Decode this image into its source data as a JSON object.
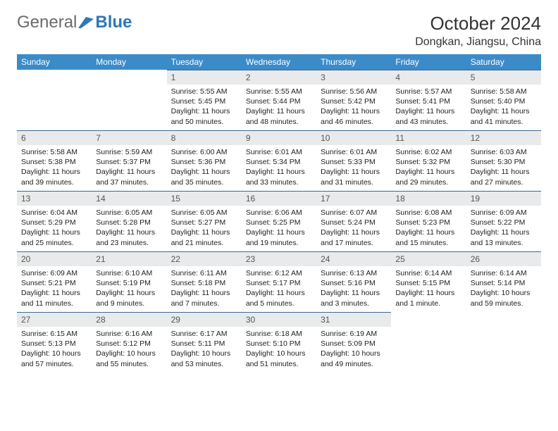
{
  "brand": {
    "text1": "General",
    "text2": "Blue"
  },
  "title": "October 2024",
  "location": "Dongkan, Jiangsu, China",
  "colors": {
    "header_bg": "#3b8bc9",
    "header_text": "#ffffff",
    "daynum_bg": "#e9eaeb",
    "daynum_border": "#3b6a93",
    "logo_gray": "#6b6b6b",
    "logo_blue": "#2e77b8",
    "page_bg": "#ffffff"
  },
  "weekdays": [
    "Sunday",
    "Monday",
    "Tuesday",
    "Wednesday",
    "Thursday",
    "Friday",
    "Saturday"
  ],
  "weeks": [
    [
      null,
      null,
      {
        "n": "1",
        "sunrise": "Sunrise: 5:55 AM",
        "sunset": "Sunset: 5:45 PM",
        "daylight": "Daylight: 11 hours and 50 minutes."
      },
      {
        "n": "2",
        "sunrise": "Sunrise: 5:55 AM",
        "sunset": "Sunset: 5:44 PM",
        "daylight": "Daylight: 11 hours and 48 minutes."
      },
      {
        "n": "3",
        "sunrise": "Sunrise: 5:56 AM",
        "sunset": "Sunset: 5:42 PM",
        "daylight": "Daylight: 11 hours and 46 minutes."
      },
      {
        "n": "4",
        "sunrise": "Sunrise: 5:57 AM",
        "sunset": "Sunset: 5:41 PM",
        "daylight": "Daylight: 11 hours and 43 minutes."
      },
      {
        "n": "5",
        "sunrise": "Sunrise: 5:58 AM",
        "sunset": "Sunset: 5:40 PM",
        "daylight": "Daylight: 11 hours and 41 minutes."
      }
    ],
    [
      {
        "n": "6",
        "sunrise": "Sunrise: 5:58 AM",
        "sunset": "Sunset: 5:38 PM",
        "daylight": "Daylight: 11 hours and 39 minutes."
      },
      {
        "n": "7",
        "sunrise": "Sunrise: 5:59 AM",
        "sunset": "Sunset: 5:37 PM",
        "daylight": "Daylight: 11 hours and 37 minutes."
      },
      {
        "n": "8",
        "sunrise": "Sunrise: 6:00 AM",
        "sunset": "Sunset: 5:36 PM",
        "daylight": "Daylight: 11 hours and 35 minutes."
      },
      {
        "n": "9",
        "sunrise": "Sunrise: 6:01 AM",
        "sunset": "Sunset: 5:34 PM",
        "daylight": "Daylight: 11 hours and 33 minutes."
      },
      {
        "n": "10",
        "sunrise": "Sunrise: 6:01 AM",
        "sunset": "Sunset: 5:33 PM",
        "daylight": "Daylight: 11 hours and 31 minutes."
      },
      {
        "n": "11",
        "sunrise": "Sunrise: 6:02 AM",
        "sunset": "Sunset: 5:32 PM",
        "daylight": "Daylight: 11 hours and 29 minutes."
      },
      {
        "n": "12",
        "sunrise": "Sunrise: 6:03 AM",
        "sunset": "Sunset: 5:30 PM",
        "daylight": "Daylight: 11 hours and 27 minutes."
      }
    ],
    [
      {
        "n": "13",
        "sunrise": "Sunrise: 6:04 AM",
        "sunset": "Sunset: 5:29 PM",
        "daylight": "Daylight: 11 hours and 25 minutes."
      },
      {
        "n": "14",
        "sunrise": "Sunrise: 6:05 AM",
        "sunset": "Sunset: 5:28 PM",
        "daylight": "Daylight: 11 hours and 23 minutes."
      },
      {
        "n": "15",
        "sunrise": "Sunrise: 6:05 AM",
        "sunset": "Sunset: 5:27 PM",
        "daylight": "Daylight: 11 hours and 21 minutes."
      },
      {
        "n": "16",
        "sunrise": "Sunrise: 6:06 AM",
        "sunset": "Sunset: 5:25 PM",
        "daylight": "Daylight: 11 hours and 19 minutes."
      },
      {
        "n": "17",
        "sunrise": "Sunrise: 6:07 AM",
        "sunset": "Sunset: 5:24 PM",
        "daylight": "Daylight: 11 hours and 17 minutes."
      },
      {
        "n": "18",
        "sunrise": "Sunrise: 6:08 AM",
        "sunset": "Sunset: 5:23 PM",
        "daylight": "Daylight: 11 hours and 15 minutes."
      },
      {
        "n": "19",
        "sunrise": "Sunrise: 6:09 AM",
        "sunset": "Sunset: 5:22 PM",
        "daylight": "Daylight: 11 hours and 13 minutes."
      }
    ],
    [
      {
        "n": "20",
        "sunrise": "Sunrise: 6:09 AM",
        "sunset": "Sunset: 5:21 PM",
        "daylight": "Daylight: 11 hours and 11 minutes."
      },
      {
        "n": "21",
        "sunrise": "Sunrise: 6:10 AM",
        "sunset": "Sunset: 5:19 PM",
        "daylight": "Daylight: 11 hours and 9 minutes."
      },
      {
        "n": "22",
        "sunrise": "Sunrise: 6:11 AM",
        "sunset": "Sunset: 5:18 PM",
        "daylight": "Daylight: 11 hours and 7 minutes."
      },
      {
        "n": "23",
        "sunrise": "Sunrise: 6:12 AM",
        "sunset": "Sunset: 5:17 PM",
        "daylight": "Daylight: 11 hours and 5 minutes."
      },
      {
        "n": "24",
        "sunrise": "Sunrise: 6:13 AM",
        "sunset": "Sunset: 5:16 PM",
        "daylight": "Daylight: 11 hours and 3 minutes."
      },
      {
        "n": "25",
        "sunrise": "Sunrise: 6:14 AM",
        "sunset": "Sunset: 5:15 PM",
        "daylight": "Daylight: 11 hours and 1 minute."
      },
      {
        "n": "26",
        "sunrise": "Sunrise: 6:14 AM",
        "sunset": "Sunset: 5:14 PM",
        "daylight": "Daylight: 10 hours and 59 minutes."
      }
    ],
    [
      {
        "n": "27",
        "sunrise": "Sunrise: 6:15 AM",
        "sunset": "Sunset: 5:13 PM",
        "daylight": "Daylight: 10 hours and 57 minutes."
      },
      {
        "n": "28",
        "sunrise": "Sunrise: 6:16 AM",
        "sunset": "Sunset: 5:12 PM",
        "daylight": "Daylight: 10 hours and 55 minutes."
      },
      {
        "n": "29",
        "sunrise": "Sunrise: 6:17 AM",
        "sunset": "Sunset: 5:11 PM",
        "daylight": "Daylight: 10 hours and 53 minutes."
      },
      {
        "n": "30",
        "sunrise": "Sunrise: 6:18 AM",
        "sunset": "Sunset: 5:10 PM",
        "daylight": "Daylight: 10 hours and 51 minutes."
      },
      {
        "n": "31",
        "sunrise": "Sunrise: 6:19 AM",
        "sunset": "Sunset: 5:09 PM",
        "daylight": "Daylight: 10 hours and 49 minutes."
      },
      null,
      null
    ]
  ]
}
